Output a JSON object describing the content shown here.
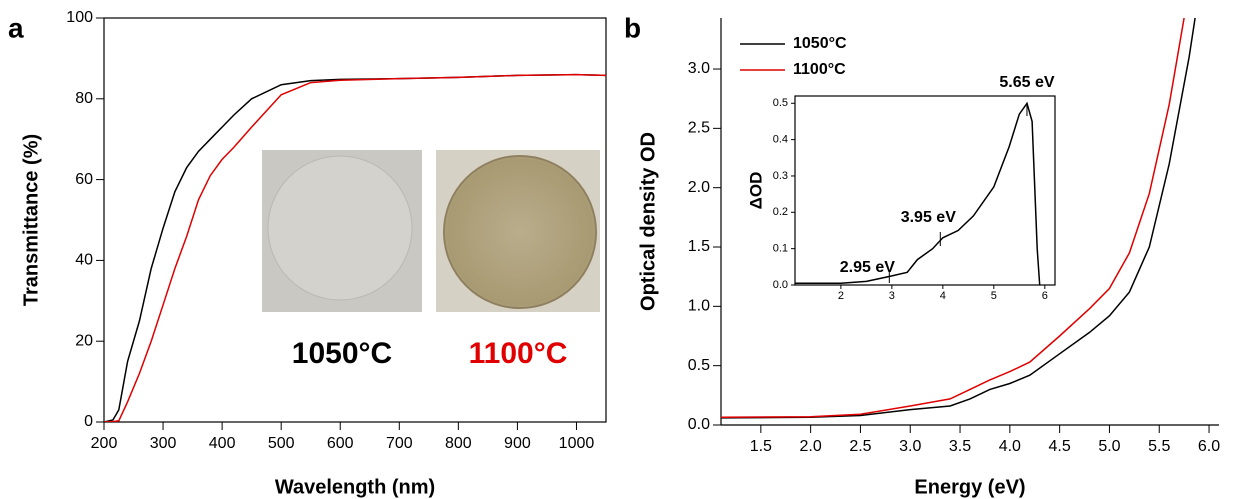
{
  "chart_data": [
    {
      "type": "line",
      "panel_label": "a",
      "x_label": "Wavelength (nm)",
      "y_label": "Transmittance (%)",
      "xlim": [
        200,
        1050
      ],
      "ylim": [
        0,
        100
      ],
      "xticks": [
        200,
        300,
        400,
        500,
        600,
        700,
        800,
        900,
        1000
      ],
      "yticks": [
        0,
        20,
        40,
        60,
        80,
        100
      ],
      "x": [
        200,
        215,
        225,
        240,
        260,
        280,
        300,
        320,
        340,
        360,
        380,
        400,
        420,
        450,
        500,
        550,
        600,
        700,
        800,
        900,
        1000,
        1050
      ],
      "series": [
        {
          "color": "#000000",
          "values": [
            0,
            0.5,
            3,
            15,
            25,
            38,
            48,
            57,
            63,
            67,
            70,
            73,
            76,
            80,
            83.5,
            84.5,
            84.8,
            85,
            85.3,
            85.8,
            86,
            85.8
          ]
        },
        {
          "color": "#e00000",
          "values": [
            0,
            0.1,
            0.3,
            5,
            12,
            20,
            29,
            38,
            46,
            55,
            61,
            65,
            68,
            73,
            81,
            84,
            84.6,
            85,
            85.3,
            85.8,
            86,
            85.8
          ]
        }
      ],
      "annotations": [
        {
          "text": "1050°C",
          "color": "#000000"
        },
        {
          "text": "1100°C",
          "color": "#e00000"
        }
      ]
    },
    {
      "type": "line",
      "panel_label": "b",
      "x_label": "Energy (eV)",
      "y_label": "Optical density OD",
      "xlim": [
        1.1,
        6.1
      ],
      "ylim": [
        0,
        3.43
      ],
      "xticks": [
        {
          "value": 1.5,
          "label": "1.5"
        },
        {
          "value": 2,
          "label": "2.0"
        },
        {
          "value": 2.5,
          "label": "2.5"
        },
        {
          "value": 3,
          "label": "3.0"
        },
        {
          "value": 3.5,
          "label": "3.5"
        },
        {
          "value": 4,
          "label": "4.0"
        },
        {
          "value": 4.5,
          "label": "4.5"
        },
        {
          "value": 5,
          "label": "5.0"
        },
        {
          "value": 5.5,
          "label": "5.5"
        },
        {
          "value": 6,
          "label": "6.0"
        }
      ],
      "yticks": [
        {
          "value": 0,
          "label": "0.0"
        },
        {
          "value": 0.5,
          "label": "0.5"
        },
        {
          "value": 1,
          "label": "1.0"
        },
        {
          "value": 1.5,
          "label": "1.5"
        },
        {
          "value": 2,
          "label": "2.0"
        },
        {
          "value": 2.5,
          "label": "2.5"
        },
        {
          "value": 3,
          "label": "3.0"
        }
      ],
      "series": [
        {
          "name": "1050°C",
          "color": "#000000",
          "x": [
            1.1,
            2.0,
            2.5,
            3.0,
            3.4,
            3.6,
            3.8,
            4.0,
            4.2,
            4.5,
            4.8,
            5.0,
            5.2,
            5.4,
            5.6,
            5.8,
            5.86
          ],
          "values": [
            0.06,
            0.065,
            0.08,
            0.13,
            0.16,
            0.22,
            0.3,
            0.35,
            0.42,
            0.6,
            0.78,
            0.92,
            1.12,
            1.5,
            2.2,
            3.1,
            3.43
          ]
        },
        {
          "name": "1100°C",
          "color": "#e00000",
          "x": [
            1.1,
            2.0,
            2.5,
            3.0,
            3.4,
            3.6,
            3.8,
            4.0,
            4.2,
            4.5,
            4.8,
            5.0,
            5.2,
            5.4,
            5.6,
            5.75
          ],
          "values": [
            0.065,
            0.07,
            0.09,
            0.16,
            0.22,
            0.3,
            0.38,
            0.45,
            0.53,
            0.75,
            0.98,
            1.15,
            1.45,
            1.95,
            2.7,
            3.43
          ]
        }
      ],
      "legend": "upper left"
    },
    {
      "type": "line",
      "y_label": "ΔOD",
      "xlim": [
        1.1,
        6.2
      ],
      "ylim": [
        0,
        0.52
      ],
      "xticks": [
        2,
        3,
        4,
        5,
        6
      ],
      "yticks": [
        {
          "value": 0,
          "label": "0.0"
        },
        {
          "value": 0.1,
          "label": "0.1"
        },
        {
          "value": 0.2,
          "label": "0.2"
        },
        {
          "value": 0.3,
          "label": "0.3"
        },
        {
          "value": 0.4,
          "label": "0.4"
        },
        {
          "value": 0.5,
          "label": "0.5"
        }
      ],
      "x": [
        1.1,
        2.0,
        2.5,
        3.0,
        3.3,
        3.5,
        3.8,
        4.0,
        4.3,
        4.6,
        5.0,
        5.3,
        5.5,
        5.65,
        5.75,
        5.85,
        5.9
      ],
      "series": [
        {
          "color": "#000000",
          "values": [
            0.005,
            0.005,
            0.01,
            0.025,
            0.035,
            0.07,
            0.1,
            0.13,
            0.15,
            0.19,
            0.27,
            0.38,
            0.47,
            0.5,
            0.45,
            0.1,
            0
          ]
        }
      ],
      "annotations": [
        {
          "text": "2.95 eV",
          "x": 2.95
        },
        {
          "text": "3.95 eV",
          "x": 3.95
        },
        {
          "text": "5.65 eV",
          "x": 5.65
        }
      ]
    }
  ]
}
